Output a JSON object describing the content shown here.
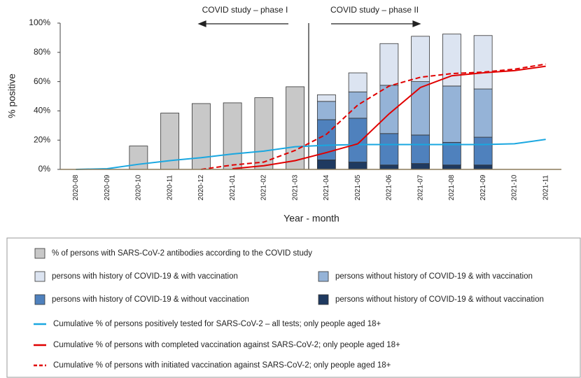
{
  "chart_data": {
    "type": "bar-line",
    "x_label": "Year - month",
    "y_label": "% positive",
    "annotations": [
      "COVID study – phase I",
      "COVID study – phase II"
    ],
    "categories": [
      "2020-08",
      "2020-09",
      "2020-10",
      "2020-11",
      "2020-12",
      "2021-01",
      "2021-02",
      "2021-03",
      "2021-04",
      "2021-05",
      "2021-06",
      "2021-07",
      "2021-08",
      "2021-09",
      "2021-10",
      "2021-11"
    ],
    "ylim": [
      0,
      100
    ],
    "yticks": [
      {
        "value": 0,
        "label": "0%"
      },
      {
        "value": 20,
        "label": "20%"
      },
      {
        "value": 40,
        "label": "40%"
      },
      {
        "value": 60,
        "label": "60%"
      },
      {
        "value": 80,
        "label": "80%"
      },
      {
        "value": 100,
        "label": "100%"
      }
    ],
    "series": [
      {
        "name": "% of persons with SARS-CoV-2 antibodies according to the COVID study",
        "kind": "bar",
        "color": "#c8c8c8",
        "values": [
          null,
          null,
          16,
          38.5,
          45,
          45.5,
          49,
          56.5,
          null,
          null,
          null,
          null,
          null,
          null,
          null,
          null
        ]
      },
      {
        "name": "persons with history of COVID-19 & with vaccination",
        "kind": "bar",
        "color": "#dce4f1",
        "values": [
          null,
          null,
          null,
          null,
          null,
          null,
          null,
          null,
          4.5,
          13,
          28.5,
          31,
          35.5,
          36.5,
          null,
          null
        ]
      },
      {
        "name": "persons without history of COVID-19 & with vaccination",
        "kind": "bar",
        "color": "#95b3d7",
        "values": [
          null,
          null,
          null,
          null,
          null,
          null,
          null,
          null,
          12.5,
          18,
          33,
          36.5,
          38.5,
          33,
          null,
          null
        ]
      },
      {
        "name": "persons with history of COVID-19 & without vaccination",
        "kind": "bar",
        "color": "#4f81bd",
        "values": [
          null,
          null,
          null,
          null,
          null,
          null,
          null,
          null,
          27.5,
          30,
          21.5,
          19.5,
          15.5,
          19,
          null,
          null
        ]
      },
      {
        "name": "persons without history of COVID-19 & without vaccination",
        "kind": "bar",
        "color": "#1f3a60",
        "values": [
          null,
          null,
          null,
          null,
          null,
          null,
          null,
          null,
          6.5,
          5,
          3,
          4,
          3,
          3,
          null,
          null
        ]
      },
      {
        "name": "Cumulative % of persons positively tested for SARS-CoV-2 – all tests; only people aged 18+",
        "kind": "line",
        "color": "#1aa7e0",
        "values": [
          0,
          0.5,
          3.5,
          6,
          8,
          10.5,
          12.5,
          15.5,
          16.5,
          17,
          17,
          17,
          17,
          17,
          17.5,
          20.5
        ]
      },
      {
        "name": "Cumulative % of persons with completed vaccination against SARS-CoV-2; only people aged 18+",
        "kind": "line",
        "color": "#e00000",
        "values": [
          null,
          null,
          null,
          null,
          null,
          0.5,
          2.5,
          6,
          11.5,
          17.5,
          38,
          56,
          64,
          66,
          67.5,
          70.5
        ]
      },
      {
        "name": "Cumulative % of persons with initiated vaccination against SARS-CoV-2; only people aged 18+",
        "kind": "line",
        "dashed": true,
        "color": "#e00000",
        "values": [
          null,
          null,
          null,
          null,
          0,
          3,
          5,
          13,
          24,
          44,
          57,
          63,
          65.5,
          66.5,
          68.5,
          72
        ]
      }
    ]
  }
}
